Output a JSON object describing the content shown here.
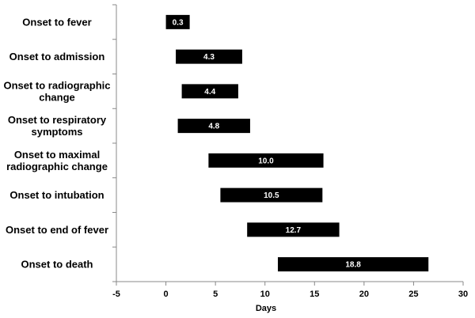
{
  "chart_data": {
    "type": "bar",
    "orientation": "horizontal-floating",
    "xlabel": "Days",
    "ylabel": "",
    "title": "",
    "xlim": [
      -5,
      30
    ],
    "xticks": [
      -5,
      0,
      5,
      10,
      15,
      20,
      25,
      30
    ],
    "grid": false,
    "legend": "none",
    "bar_color": "#000000",
    "label_color": "#ffffff",
    "categories": [
      {
        "label_lines": [
          "Onset to fever"
        ],
        "start": 0.0,
        "end": 2.4,
        "label": "0.3"
      },
      {
        "label_lines": [
          "Onset to admission"
        ],
        "start": 1.0,
        "end": 7.7,
        "label": "4.3"
      },
      {
        "label_lines": [
          "Onset to radiographic",
          "change"
        ],
        "start": 1.6,
        "end": 7.3,
        "label": "4.4"
      },
      {
        "label_lines": [
          "Onset to respiratory",
          "symptoms"
        ],
        "start": 1.2,
        "end": 8.5,
        "label": "4.8"
      },
      {
        "label_lines": [
          "Onset to maximal",
          "radiographic change"
        ],
        "start": 4.3,
        "end": 15.9,
        "label": "10.0"
      },
      {
        "label_lines": [
          "Onset to intubation"
        ],
        "start": 5.5,
        "end": 15.8,
        "label": "10.5"
      },
      {
        "label_lines": [
          "Onset to end of fever"
        ],
        "start": 8.2,
        "end": 17.5,
        "label": "12.7"
      },
      {
        "label_lines": [
          "Onset to death"
        ],
        "start": 11.3,
        "end": 26.5,
        "label": "18.8"
      }
    ]
  }
}
